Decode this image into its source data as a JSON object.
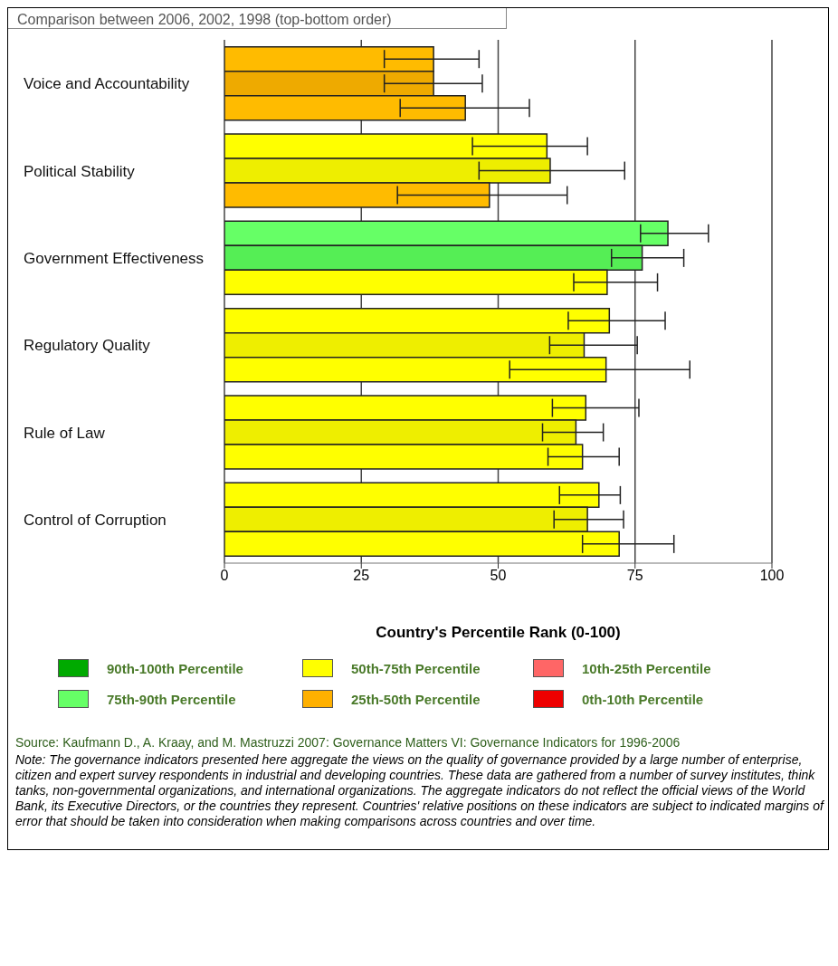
{
  "chart_data": {
    "type": "bar",
    "orientation": "horizontal",
    "title": "Comparison between 2006, 2002, 1998 (top-bottom order)",
    "xlabel": "Country's Percentile Rank (0-100)",
    "categories": [
      "Voice and Accountability",
      "Political Stability",
      "Government Effectiveness",
      "Regulatory Quality",
      "Rule of Law",
      "Control of Corruption"
    ],
    "series": [
      {
        "colors": [
          "#ffbb00",
          "#ffff00",
          "#66ff66",
          "#ffff00",
          "#ffff00",
          "#ffff00"
        ],
        "values": [
          38.2,
          58.9,
          81.0,
          70.3,
          66.0,
          68.4
        ],
        "errors": [
          [
            29.2,
            46.5
          ],
          [
            45.3,
            66.3
          ],
          [
            76.0,
            88.4
          ],
          [
            62.8,
            80.5
          ],
          [
            59.9,
            75.7
          ],
          [
            61.2,
            72.3
          ]
        ]
      },
      {
        "colors": [
          "#eeaa00",
          "#eeee00",
          "#55ee55",
          "#eeee00",
          "#eeee00",
          "#eeee00"
        ],
        "values": [
          38.2,
          59.5,
          76.3,
          65.7,
          64.2,
          66.3
        ],
        "errors": [
          [
            29.2,
            47.1
          ],
          [
            46.5,
            73.1
          ],
          [
            70.7,
            83.9
          ],
          [
            59.4,
            75.4
          ],
          [
            58.1,
            69.2
          ],
          [
            60.2,
            72.9
          ]
        ]
      },
      {
        "colors": [
          "#ffbb00",
          "#ffbb00",
          "#ffff00",
          "#ffff00",
          "#ffff00",
          "#ffff00"
        ],
        "values": [
          44.0,
          48.4,
          69.9,
          69.7,
          65.4,
          72.1
        ],
        "errors": [
          [
            32.1,
            55.7
          ],
          [
            31.6,
            62.6
          ],
          [
            63.8,
            79.1
          ],
          [
            52.1,
            85.0
          ],
          [
            59.1,
            72.1
          ],
          [
            65.4,
            82.1
          ]
        ]
      },
      {
        "name": "90th-100th Percentile",
        "color": "#00aa00",
        "values": [
          null,
          null,
          null,
          null,
          null,
          null
        ]
      },
      {
        "name": "50th-75th Percentile",
        "color": "#ffff00",
        "values": [
          null,
          null,
          null,
          null,
          null,
          null
        ]
      },
      {
        "name": "10th-25th Percentile",
        "color": "#ff6666",
        "values": [
          null,
          null,
          null,
          null,
          null,
          null
        ]
      },
      {
        "name": "75th-90th Percentile",
        "color": "#66ff66",
        "values": [
          null,
          null,
          null,
          null,
          null,
          null
        ]
      },
      {
        "name": "25th-50th Percentile",
        "color": "#ffb000",
        "values": [
          null,
          null,
          null,
          null,
          null,
          null
        ]
      },
      {
        "name": "0th-10th Percentile",
        "color": "#ee0000",
        "values": [
          null,
          null,
          null,
          null,
          null,
          null
        ]
      }
    ],
    "xlim": [
      0,
      100
    ],
    "xticks": [
      0,
      25,
      50,
      75,
      100
    ],
    "grid": "x",
    "legend": "bottom",
    "annotations": [
      "Source: Kaufmann D., A. Kraay, and M. Mastruzzi 2007: Governance Matters VI: Governance Indicators for 1996-2006",
      "Note: The governance indicators presented here aggregate the views on the quality of governance provided by a large number of enterprise, citizen and expert survey respondents in industrial and developing countries. These data are gathered from a number of survey institutes, think tanks, non-governmental organizations, and international organizations. The aggregate indicators do not reflect the official views of the World Bank, its Executive Directors, or the countries they represent. Countries' relative positions on these indicators are subject to indicated margins of error that should be taken into consideration when making comparisons across countries and over time."
    ]
  }
}
